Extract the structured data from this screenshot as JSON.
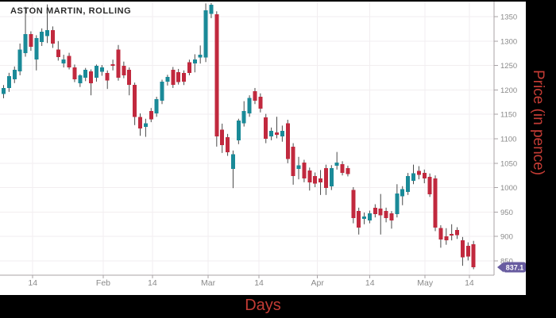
{
  "colors": {
    "page_bg": "#000000",
    "chart_bg": "#ffffff",
    "up": "#1a8a98",
    "down": "#c1293e",
    "wick": "#4a4a4a",
    "grid": "#f2eef0",
    "axis": "#a8a3a6",
    "tick_text": "#8a8a8a",
    "title_text": "#2b2b2b",
    "axis_title_text": "#c43c35",
    "tag_bg": "#685ca0",
    "tag_text": "#ffffff"
  },
  "chart_data": {
    "type": "candlestick",
    "title": "ASTON MARTIN, ROLLING",
    "xlabel": "Days",
    "ylabel": "Price (in pence)",
    "last_price_label": "837.1",
    "last_close": 837.1,
    "ylim": [
      830,
      1385
    ],
    "grid": true,
    "y_ticks": [
      850,
      900,
      950,
      1000,
      1050,
      1100,
      1150,
      1200,
      1250,
      1300,
      1350
    ],
    "x_ticks": [
      {
        "label": "14",
        "i": 5.7
      },
      {
        "label": "Feb",
        "i": 18.6
      },
      {
        "label": "14",
        "i": 27.6
      },
      {
        "label": "Mar",
        "i": 37.8
      },
      {
        "label": "14",
        "i": 47.1
      },
      {
        "label": "Apr",
        "i": 57.8
      },
      {
        "label": "14",
        "i": 67.4
      },
      {
        "label": "May",
        "i": 77.5
      },
      {
        "label": "14",
        "i": 85.6
      }
    ],
    "candles_format": [
      "open",
      "high",
      "low",
      "close"
    ],
    "candles": [
      [
        1192,
        1210,
        1183,
        1204
      ],
      [
        1204,
        1235,
        1196,
        1228
      ],
      [
        1222,
        1248,
        1214,
        1241
      ],
      [
        1238,
        1295,
        1230,
        1283
      ],
      [
        1275,
        1370,
        1268,
        1314
      ],
      [
        1314,
        1320,
        1280,
        1288
      ],
      [
        1262,
        1312,
        1240,
        1306
      ],
      [
        1298,
        1326,
        1290,
        1319
      ],
      [
        1310,
        1375,
        1296,
        1322
      ],
      [
        1322,
        1330,
        1286,
        1295
      ],
      [
        1283,
        1300,
        1260,
        1267
      ],
      [
        1254,
        1272,
        1246,
        1262
      ],
      [
        1270,
        1276,
        1242,
        1246
      ],
      [
        1246,
        1252,
        1216,
        1222
      ],
      [
        1214,
        1232,
        1206,
        1230
      ],
      [
        1225,
        1245,
        1218,
        1241
      ],
      [
        1238,
        1242,
        1189,
        1214
      ],
      [
        1225,
        1252,
        1217,
        1249
      ],
      [
        1237,
        1251,
        1229,
        1246
      ],
      [
        1235,
        1240,
        1202,
        1219
      ],
      [
        1253,
        1262,
        1240,
        1249
      ],
      [
        1283,
        1292,
        1219,
        1225
      ],
      [
        1249,
        1258,
        1224,
        1230
      ],
      [
        1241,
        1246,
        1189,
        1210
      ],
      [
        1210,
        1215,
        1128,
        1145
      ],
      [
        1145,
        1152,
        1106,
        1121
      ],
      [
        1124,
        1141,
        1104,
        1132
      ],
      [
        1157,
        1163,
        1134,
        1140
      ],
      [
        1152,
        1186,
        1145,
        1181
      ],
      [
        1178,
        1221,
        1171,
        1217
      ],
      [
        1217,
        1231,
        1209,
        1227
      ],
      [
        1241,
        1247,
        1204,
        1210
      ],
      [
        1236,
        1243,
        1211,
        1216
      ],
      [
        1235,
        1240,
        1210,
        1217
      ],
      [
        1257,
        1262,
        1230,
        1235
      ],
      [
        1254,
        1273,
        1236,
        1262
      ],
      [
        1266,
        1291,
        1254,
        1272
      ],
      [
        1266,
        1377,
        1257,
        1363
      ],
      [
        1356,
        1378,
        1347,
        1374
      ],
      [
        1355,
        1361,
        1084,
        1105
      ],
      [
        1119,
        1131,
        1071,
        1087
      ],
      [
        1103,
        1110,
        1065,
        1072
      ],
      [
        1038,
        1076,
        999,
        1068
      ],
      [
        1097,
        1141,
        1089,
        1137
      ],
      [
        1132,
        1177,
        1125,
        1157
      ],
      [
        1152,
        1189,
        1145,
        1184
      ],
      [
        1197,
        1204,
        1171,
        1178
      ],
      [
        1186,
        1193,
        1154,
        1162
      ],
      [
        1144,
        1151,
        1091,
        1100
      ],
      [
        1105,
        1123,
        1097,
        1116
      ],
      [
        1113,
        1145,
        1101,
        1108
      ],
      [
        1105,
        1127,
        1094,
        1116
      ],
      [
        1132,
        1139,
        1050,
        1059
      ],
      [
        1084,
        1091,
        1006,
        1024
      ],
      [
        1038,
        1063,
        1017,
        1046
      ],
      [
        1051,
        1057,
        1011,
        1019
      ],
      [
        1035,
        1041,
        994,
        1011
      ],
      [
        1024,
        1031,
        1001,
        1008
      ],
      [
        1019,
        1036,
        985,
        1011
      ],
      [
        1040,
        1047,
        985,
        999
      ],
      [
        1003,
        1046,
        995,
        1040
      ],
      [
        1045,
        1073,
        1037,
        1051
      ],
      [
        1048,
        1054,
        1025,
        1030
      ],
      [
        1040,
        1045,
        1023,
        1028
      ],
      [
        995,
        1001,
        927,
        938
      ],
      [
        952,
        959,
        904,
        918
      ],
      [
        936,
        949,
        925,
        941
      ],
      [
        933,
        953,
        927,
        947
      ],
      [
        959,
        966,
        939,
        946
      ],
      [
        957,
        987,
        904,
        943
      ],
      [
        952,
        959,
        929,
        938
      ],
      [
        947,
        952,
        916,
        933
      ],
      [
        946,
        1007,
        939,
        988
      ],
      [
        982,
        1003,
        964,
        997
      ],
      [
        991,
        1030,
        985,
        1024
      ],
      [
        1014,
        1047,
        1007,
        1029
      ],
      [
        1034,
        1044,
        1017,
        1026
      ],
      [
        1030,
        1037,
        1009,
        1019
      ],
      [
        1022,
        1029,
        981,
        986
      ],
      [
        1019,
        1025,
        911,
        918
      ],
      [
        917,
        923,
        877,
        894
      ],
      [
        900,
        917,
        883,
        892
      ],
      [
        905,
        925,
        892,
        902
      ],
      [
        913,
        919,
        895,
        903
      ],
      [
        892,
        899,
        840,
        857
      ],
      [
        881,
        888,
        851,
        859
      ],
      [
        884,
        891,
        833,
        837.1
      ]
    ]
  }
}
